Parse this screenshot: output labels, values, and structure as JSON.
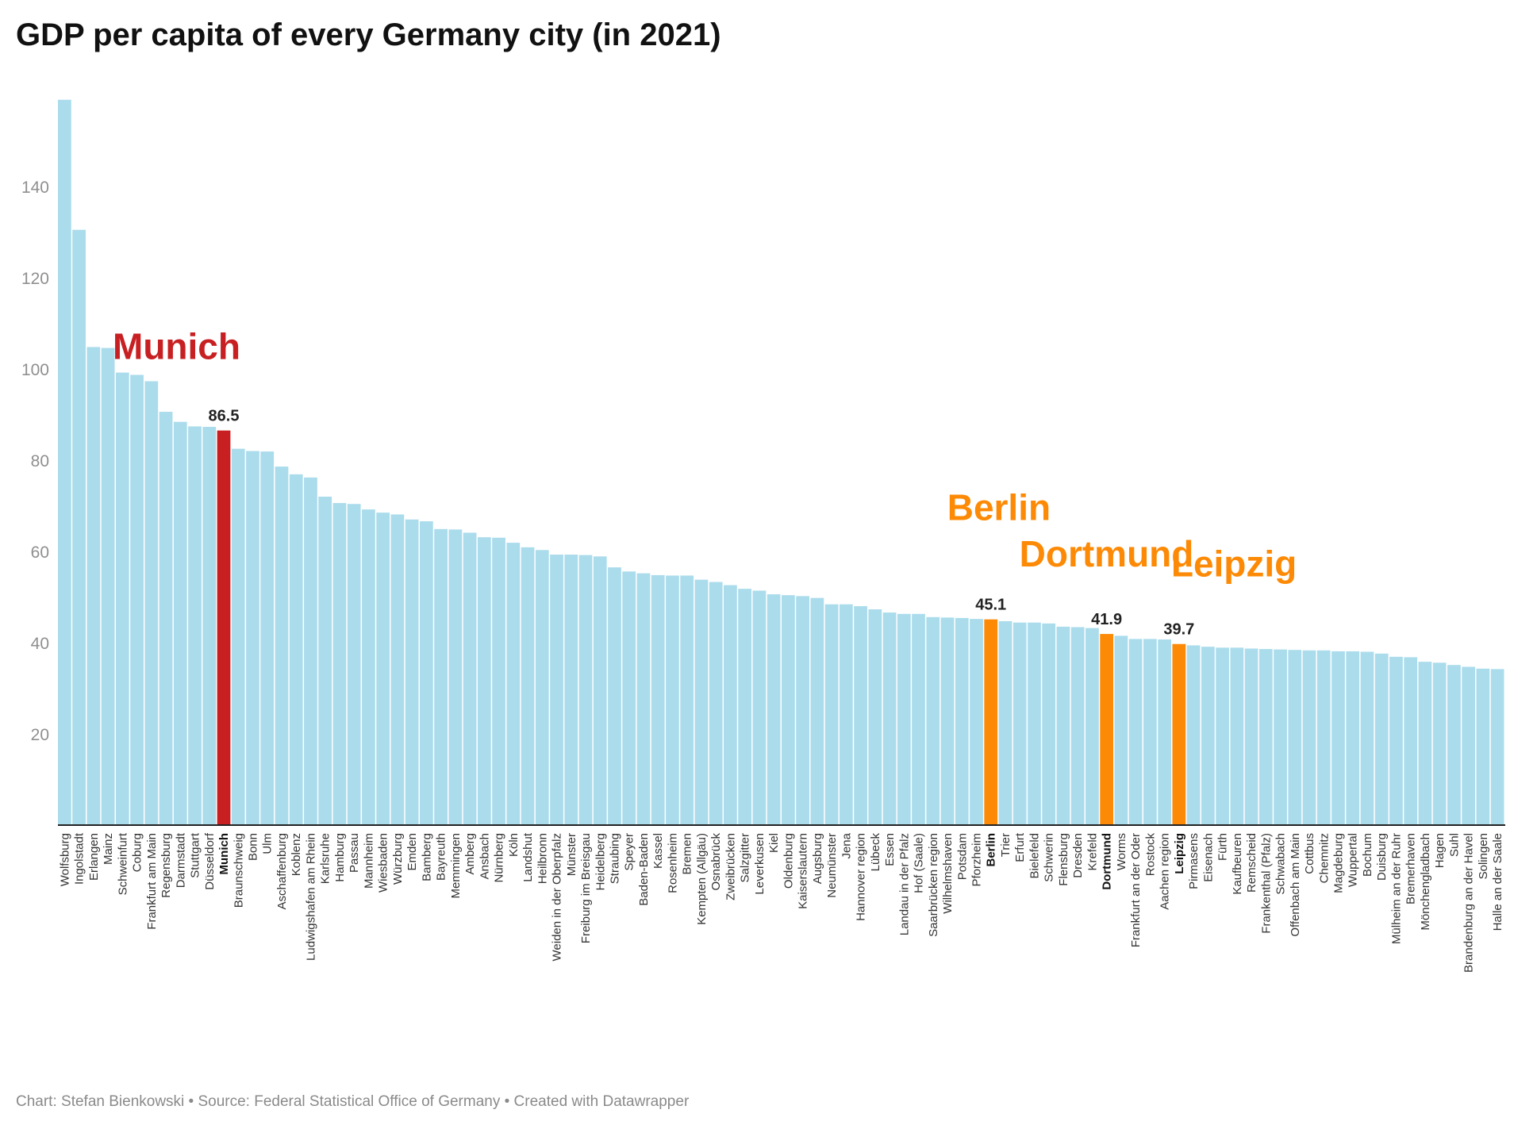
{
  "title": "GDP per capita of every Germany city (in 2021)",
  "footer": "Chart: Stefan Bienkowski • Source: Federal Statistical Office of Germany • Created with Datawrapper",
  "colors": {
    "default": "#abdcec",
    "munich": "#c82022",
    "highlight": "#fd8a06",
    "baseline": "#222222"
  },
  "chart_data": {
    "type": "bar",
    "ylim": [
      0,
      160
    ],
    "yticks": [
      20,
      40,
      60,
      80,
      100,
      120,
      140
    ],
    "grid": false,
    "categories": [
      "Wolfsburg",
      "Ingolstadt",
      "Erlangen",
      "Mainz",
      "Schweinfurt",
      "Coburg",
      "Frankfurt am Main",
      "Regensburg",
      "Darmstadt",
      "Stuttgart",
      "Düsseldorf",
      "Munich",
      "Braunschweig",
      "Bonn",
      "Ulm",
      "Aschaffenburg",
      "Koblenz",
      "Ludwigshafen am Rhein",
      "Karlsruhe",
      "Hamburg",
      "Passau",
      "Mannheim",
      "Wiesbaden",
      "Würzburg",
      "Emden",
      "Bamberg",
      "Bayreuth",
      "Memmingen",
      "Amberg",
      "Ansbach",
      "Nürnberg",
      "Köln",
      "Landshut",
      "Heilbronn",
      "Weiden in der Oberpfalz",
      "Münster",
      "Freiburg im Breisgau",
      "Heidelberg",
      "Straubing",
      "Speyer",
      "Baden-Baden",
      "Kassel",
      "Rosenheim",
      "Bremen",
      "Kempten (Allgäu)",
      "Osnabrück",
      "Zweibrücken",
      "Salzgitter",
      "Leverkusen",
      "Kiel",
      "Oldenburg",
      "Kaiserslautern",
      "Augsburg",
      "Neumünster",
      "Jena",
      "Hannover region",
      "Lübeck",
      "Essen",
      "Landau in der Pfalz",
      "Hof (Saale)",
      "Saarbrücken region",
      "Wilhelmshaven",
      "Potsdam",
      "Pforzheim",
      "Berlin",
      "Trier",
      "Erfurt",
      "Bielefeld",
      "Schwerin",
      "Flensburg",
      "Dresden",
      "Krefeld",
      "Dortmund",
      "Worms",
      "Frankfurt an der Oder",
      "Rostock",
      "Aachen region",
      "Leipzig",
      "Pirmasens",
      "Eisenach",
      "Fürth",
      "Kaufbeuren",
      "Remscheid",
      "Frankenthal (Pfalz)",
      "Schwabach",
      "Offenbach am Main",
      "Cottbus",
      "Chemnitz",
      "Magdeburg",
      "Wuppertal",
      "Bochum",
      "Duisburg",
      "Mülheim an der Ruhr",
      "Bremerhaven",
      "Mönchengladbach",
      "Hagen",
      "Suhl",
      "Brandenburg an der Havel",
      "Solingen",
      "Halle an der Saale"
    ],
    "values": [
      159,
      130.5,
      104.8,
      104.6,
      99.2,
      98.7,
      97.3,
      90.6,
      88.4,
      87.4,
      87.3,
      86.5,
      82.5,
      82,
      81.9,
      78.6,
      76.9,
      76.2,
      72,
      70.6,
      70.4,
      69.2,
      68.5,
      68.1,
      67,
      66.6,
      64.9,
      64.8,
      64.1,
      63.1,
      63,
      61.9,
      60.9,
      60.3,
      59.3,
      59.3,
      59.2,
      58.9,
      56.5,
      55.6,
      55.2,
      54.8,
      54.7,
      54.7,
      53.8,
      53.3,
      52.6,
      51.8,
      51.4,
      50.6,
      50.4,
      50.2,
      49.8,
      48.4,
      48.4,
      48,
      47.3,
      46.6,
      46.3,
      46.3,
      45.6,
      45.5,
      45.4,
      45.2,
      45.1,
      44.7,
      44.4,
      44.4,
      44.2,
      43.5,
      43.4,
      43.2,
      41.9,
      41.5,
      40.8,
      40.8,
      40.7,
      39.7,
      39.4,
      39.1,
      38.9,
      38.9,
      38.7,
      38.6,
      38.5,
      38.4,
      38.3,
      38.3,
      38.1,
      38.1,
      38,
      37.6,
      36.9,
      36.8,
      35.8,
      35.6,
      35.1,
      34.7,
      34.3,
      34.2
    ],
    "highlights": [
      {
        "category": "Munich",
        "value_label": "86.5",
        "annotation": "Munich",
        "color_key": "munich"
      },
      {
        "category": "Berlin",
        "value_label": "45.1",
        "annotation": "Berlin",
        "color_key": "highlight"
      },
      {
        "category": "Dortmund",
        "value_label": "41.9",
        "annotation": "Dortmund",
        "color_key": "highlight"
      },
      {
        "category": "Leipzig",
        "value_label": "39.7",
        "annotation": "Leipzig",
        "color_key": "highlight"
      }
    ]
  }
}
